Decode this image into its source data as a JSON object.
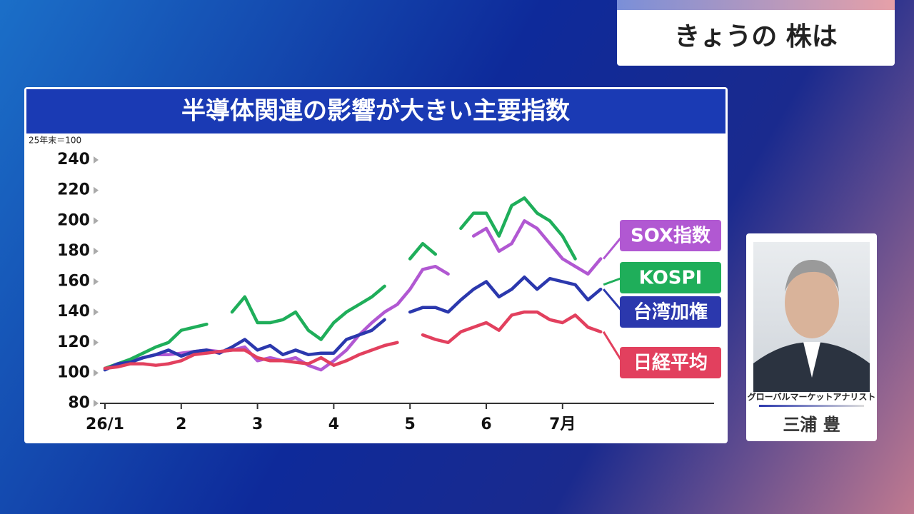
{
  "header": {
    "title": "きょうの 株は"
  },
  "analyst": {
    "role": "グローバルマーケットアナリスト",
    "name": "三浦 豊"
  },
  "chart_data": {
    "type": "line",
    "title": "半導体関連の影響が大きい主要指数",
    "y_note": "25年末＝100",
    "categories": [
      "26/1",
      null,
      null,
      null,
      null,
      null,
      "2",
      null,
      null,
      null,
      null,
      null,
      "3",
      null,
      null,
      null,
      null,
      null,
      "4",
      null,
      null,
      null,
      null,
      null,
      "5",
      null,
      null,
      null,
      null,
      null,
      "6",
      null,
      null,
      null,
      null,
      null,
      "7月",
      null,
      null,
      null,
      null,
      null,
      null,
      null,
      null,
      null,
      null,
      null
    ],
    "series": [
      {
        "name": "SOX指数",
        "color": "#b158d2",
        "values": [
          103,
          105,
          108,
          110,
          112,
          112,
          113,
          114,
          115,
          114,
          115,
          117,
          108,
          110,
          108,
          110,
          105,
          102,
          108,
          115,
          125,
          133,
          140,
          145,
          155,
          168,
          170,
          165,
          null,
          190,
          195,
          180,
          185,
          200,
          195,
          185,
          175,
          170,
          165,
          175,
          null,
          null,
          null,
          null,
          null,
          null,
          null,
          null
        ]
      },
      {
        "name": "KOSPI",
        "color": "#1fae5a",
        "values": [
          103,
          106,
          109,
          113,
          117,
          120,
          128,
          130,
          132,
          null,
          140,
          150,
          133,
          133,
          135,
          140,
          128,
          122,
          133,
          140,
          145,
          150,
          157,
          null,
          175,
          185,
          178,
          null,
          195,
          205,
          205,
          190,
          210,
          215,
          205,
          200,
          190,
          175,
          null,
          158,
          null,
          null,
          null,
          null,
          null,
          null,
          null,
          null
        ]
      },
      {
        "name": "台湾加権",
        "color": "#2b38ad",
        "values": [
          102,
          106,
          107,
          110,
          112,
          115,
          111,
          114,
          115,
          113,
          117,
          122,
          115,
          118,
          112,
          115,
          112,
          113,
          113,
          122,
          125,
          128,
          135,
          null,
          140,
          143,
          143,
          140,
          148,
          155,
          160,
          150,
          155,
          163,
          155,
          162,
          160,
          158,
          148,
          155,
          null,
          null,
          null,
          null,
          null,
          null,
          null,
          null
        ]
      },
      {
        "name": "日経平均",
        "color": "#e2405e",
        "values": [
          103,
          104,
          106,
          106,
          105,
          106,
          108,
          112,
          113,
          114,
          115,
          115,
          110,
          108,
          108,
          107,
          106,
          110,
          105,
          108,
          112,
          115,
          118,
          120,
          null,
          125,
          122,
          120,
          127,
          130,
          133,
          128,
          138,
          140,
          140,
          135,
          133,
          138,
          130,
          127,
          null,
          null,
          null,
          null,
          null,
          null,
          null,
          null
        ]
      }
    ],
    "ylim": [
      80,
      240
    ],
    "yticks": [
      80,
      100,
      120,
      140,
      160,
      180,
      200,
      220,
      240
    ],
    "grid": false
  }
}
